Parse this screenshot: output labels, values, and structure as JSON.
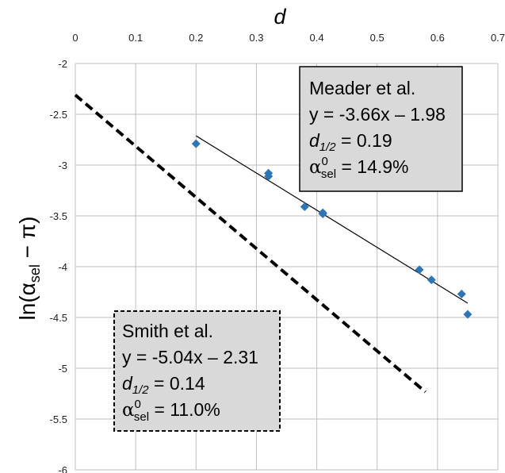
{
  "chart_data": {
    "type": "scatter",
    "xlabel": "d",
    "ylabel_main": "ln(α",
    "ylabel_sub": "sel",
    "ylabel_tail": " − π)",
    "xlim": [
      0,
      0.7
    ],
    "ylim": [
      -6,
      -2
    ],
    "x_ticks": [
      0,
      0.1,
      0.2,
      0.3,
      0.4,
      0.5,
      0.6,
      0.7
    ],
    "y_ticks": [
      -2,
      -2.5,
      -3,
      -3.5,
      -4,
      -4.5,
      -5,
      -5.5,
      -6
    ],
    "x_tick_labels": [
      "0",
      "0.1",
      "0.2",
      "0.3",
      "0.4",
      "0.5",
      "0.6",
      "0.7"
    ],
    "y_tick_labels": [
      "-2",
      "-2.5",
      "-3",
      "-3.5",
      "-4",
      "-4.5",
      "-5",
      "-5.5",
      "-6"
    ],
    "grid": true,
    "x_axis_position": "top",
    "series": [
      {
        "kind": "points",
        "marker": "diamond",
        "color": "#2E75B6",
        "points": [
          {
            "x": 0.2,
            "y": -2.79
          },
          {
            "x": 0.32,
            "y": -3.08
          },
          {
            "x": 0.32,
            "y": -3.11
          },
          {
            "x": 0.38,
            "y": -3.41
          },
          {
            "x": 0.41,
            "y": -3.47
          },
          {
            "x": 0.41,
            "y": -3.48
          },
          {
            "x": 0.57,
            "y": -4.03
          },
          {
            "x": 0.59,
            "y": -4.13
          },
          {
            "x": 0.64,
            "y": -4.27
          },
          {
            "x": 0.65,
            "y": -4.47
          }
        ]
      },
      {
        "kind": "fit-line",
        "style": "solid",
        "color": "#000000",
        "slope": -3.66,
        "intercept": -1.98,
        "x_range": [
          0.2,
          0.65
        ]
      },
      {
        "kind": "fit-line",
        "style": "dashed",
        "color": "#000000",
        "slope": -5.04,
        "intercept": -2.31,
        "x_range": [
          0,
          0.58
        ]
      }
    ],
    "annotations": {
      "meader": {
        "title": "Meader et al.",
        "equation": "y = -3.66x – 1.98",
        "d_label": "d",
        "d_sub": "1/2",
        "d_value": " = 0.19",
        "alpha_label": "α",
        "alpha_sup": "0",
        "alpha_sub": "sel",
        "alpha_value": " = 14.9%",
        "placement": "top-right",
        "border": "solid"
      },
      "smith": {
        "title": "Smith et al.",
        "equation": "y = -5.04x – 2.31",
        "d_label": "d",
        "d_sub": "1/2",
        "d_value": " = 0.14",
        "alpha_label": "α",
        "alpha_sup": "0",
        "alpha_sub": "sel",
        "alpha_value": " = 11.0%",
        "placement": "bottom-left",
        "border": "dashed"
      }
    },
    "colors": {
      "box_fill": "#D9D9D9",
      "grid": "#BFBFBF",
      "marker": "#2E75B6"
    }
  }
}
